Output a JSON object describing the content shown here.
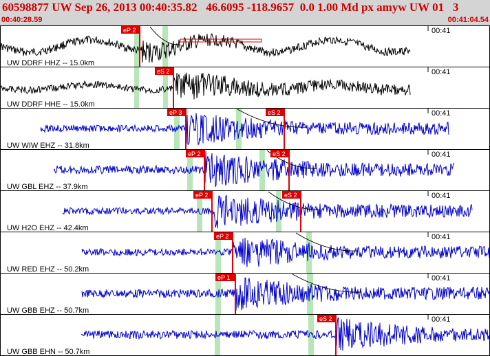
{
  "header": {
    "title": "60598877 UW Sep 26, 2013 00:40:35.82   46.6095 -118.9657  0.0 1.00 Md px amyw UW 01   3",
    "start_time": "00:40:28.59",
    "end_time": "00:41:04.54"
  },
  "colors": {
    "header_bg": "#d4d4d4",
    "header_text": "#cc0000",
    "trace_black": "#000000",
    "trace_blue": "#0000cc",
    "pick": "#e00000",
    "window": "#b8e6b8",
    "panel_border": "#000000"
  },
  "panels": [
    {
      "label": "UW DDRF HHZ -- 15.0km",
      "time_mark": "00:41",
      "color": "black",
      "picks": [
        {
          "label": "eP 2"
        }
      ]
    },
    {
      "label": "UW DDRF HHE -- 15.0km",
      "time_mark": "00:41",
      "color": "black",
      "picks": [
        {
          "label": "eS 2"
        }
      ]
    },
    {
      "label": "UW WIW EHZ -- 31.8km",
      "time_mark": "00:41",
      "color": "blue",
      "picks": [
        {
          "label": "eP 3"
        },
        {
          "label": "eS 2"
        }
      ]
    },
    {
      "label": "UW GBL EHZ -- 37.9km",
      "time_mark": "00:41",
      "color": "blue",
      "picks": [
        {
          "label": "eP 2"
        },
        {
          "label": "eS 2"
        }
      ]
    },
    {
      "label": "UW H2O EHZ -- 42.4km",
      "time_mark": "00:41",
      "color": "blue",
      "picks": [
        {
          "label": "eP 2"
        },
        {
          "label": "eS 2"
        }
      ]
    },
    {
      "label": "UW RED EHZ -- 50.2km",
      "time_mark": "00:41",
      "color": "blue",
      "picks": [
        {
          "label": "eP 2"
        }
      ]
    },
    {
      "label": "UW GBB EHZ -- 50.7km",
      "time_mark": "00:41",
      "color": "blue",
      "picks": [
        {
          "label": "eP 1"
        }
      ]
    },
    {
      "label": "UW GBB EHN -- 50.7km",
      "time_mark": "00:41",
      "color": "blue",
      "picks": [
        {
          "label": "eS 2"
        }
      ]
    }
  ]
}
